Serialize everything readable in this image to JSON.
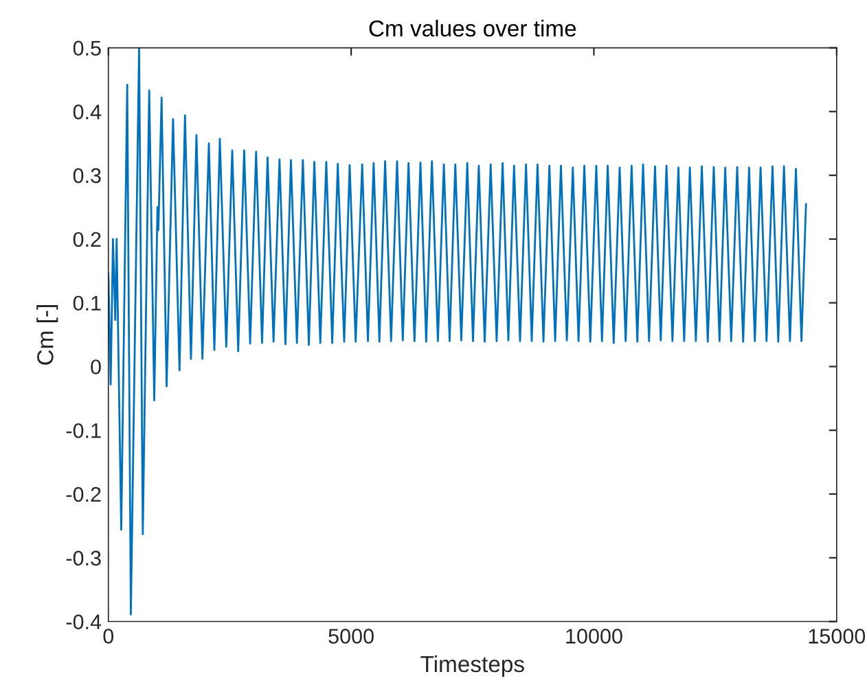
{
  "chart_data": {
    "type": "line",
    "title": "Cm values over time",
    "xlabel": "Timesteps",
    "ylabel": "Cm [-]",
    "xlim": [
      0,
      15000
    ],
    "xticks": [
      0,
      5000,
      10000,
      15000
    ],
    "ylim": [
      -0.4,
      0.5
    ],
    "yticks": [
      -0.4,
      -0.3,
      -0.2,
      -0.1,
      0,
      0.1,
      0.2,
      0.3,
      0.4,
      0.5
    ],
    "grid": false,
    "legend": false,
    "marker": "none",
    "line_style": "solid",
    "series": [
      {
        "color": "#0072bd",
        "x": [
          0,
          47,
          95,
          142,
          170,
          265,
          388,
          463,
          633,
          709,
          841,
          945,
          1011,
          1030,
          1096,
          1200,
          1332,
          1465,
          1578,
          1701,
          1814,
          1937,
          2070,
          2183,
          2296,
          2428,
          2551,
          2674,
          2797,
          2920,
          3043,
          3166,
          3279,
          3402,
          3525,
          3647,
          3760,
          3883,
          4006,
          4129,
          4242,
          4365,
          4488,
          4611,
          4725,
          4857,
          4970,
          5093,
          5228,
          5346,
          5464,
          5582,
          5700,
          5823,
          5946,
          6064,
          6182,
          6305,
          6428,
          6546,
          6664,
          6787,
          6910,
          7028,
          7146,
          7269,
          7392,
          7510,
          7629,
          7751,
          7874,
          7997,
          8120,
          8238,
          8356,
          8479,
          8602,
          8720,
          8839,
          8961,
          9084,
          9202,
          9321,
          9443,
          9566,
          9684,
          9803,
          9926,
          10049,
          10167,
          10285,
          10408,
          10531,
          10654,
          10777,
          10895,
          11013,
          11136,
          11259,
          11377,
          11495,
          11618,
          11741,
          11859,
          11977,
          12100,
          12223,
          12346,
          12469,
          12587,
          12705,
          12828,
          12951,
          13074,
          13197,
          13315,
          13433,
          13556,
          13679,
          13797,
          13915,
          14038,
          14161,
          14275,
          14369
        ],
        "values": [
          0.146,
          -0.028,
          0.2,
          0.073,
          0.2,
          -0.256,
          0.442,
          -0.389,
          0.5,
          -0.263,
          0.433,
          -0.053,
          0.25,
          0.214,
          0.422,
          -0.031,
          0.388,
          -0.006,
          0.394,
          0.012,
          0.363,
          0.012,
          0.35,
          0.026,
          0.357,
          0.031,
          0.339,
          0.024,
          0.339,
          0.036,
          0.337,
          0.037,
          0.328,
          0.039,
          0.325,
          0.035,
          0.324,
          0.037,
          0.324,
          0.034,
          0.321,
          0.037,
          0.321,
          0.037,
          0.318,
          0.039,
          0.316,
          0.039,
          0.317,
          0.04,
          0.319,
          0.039,
          0.322,
          0.04,
          0.322,
          0.041,
          0.319,
          0.04,
          0.32,
          0.039,
          0.322,
          0.04,
          0.317,
          0.04,
          0.317,
          0.041,
          0.319,
          0.04,
          0.315,
          0.039,
          0.317,
          0.04,
          0.319,
          0.041,
          0.315,
          0.04,
          0.317,
          0.04,
          0.317,
          0.039,
          0.315,
          0.04,
          0.315,
          0.041,
          0.312,
          0.04,
          0.315,
          0.039,
          0.315,
          0.04,
          0.315,
          0.037,
          0.312,
          0.04,
          0.315,
          0.039,
          0.317,
          0.04,
          0.314,
          0.041,
          0.315,
          0.04,
          0.312,
          0.04,
          0.312,
          0.04,
          0.314,
          0.039,
          0.313,
          0.04,
          0.312,
          0.04,
          0.313,
          0.039,
          0.312,
          0.04,
          0.312,
          0.04,
          0.314,
          0.039,
          0.314,
          0.04,
          0.31,
          0.04,
          0.255
        ]
      }
    ]
  }
}
